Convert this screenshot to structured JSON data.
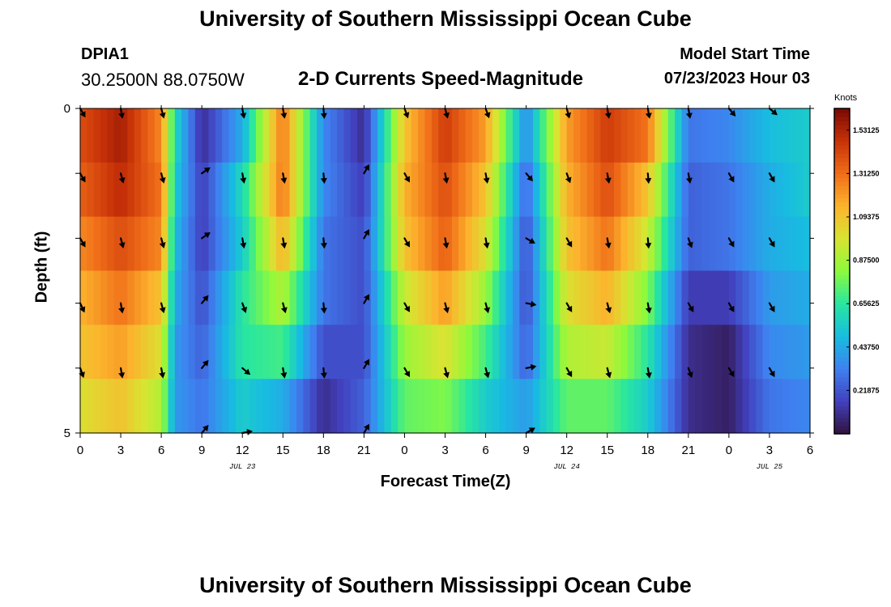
{
  "header": {
    "title": "University of Southern Mississippi Ocean Cube",
    "station": "DPIA1",
    "coords": "30.2500N  88.0750W",
    "subtitle": "2-D Currents Speed-Magnitude",
    "model_start_label": "Model Start Time",
    "model_start_value": "07/23/2023 Hour 03"
  },
  "footer": {
    "title": "University of Southern Mississippi Ocean Cube"
  },
  "chart_data": {
    "type": "heatmap",
    "title": "2-D Currents Speed-Magnitude",
    "xlabel": "Forecast Time(Z)",
    "ylabel": "Depth (ft)",
    "x_ticks": [
      "0",
      "3",
      "6",
      "9",
      "12",
      "15",
      "18",
      "21",
      "0",
      "3",
      "6",
      "9",
      "12",
      "15",
      "18",
      "21",
      "0",
      "3",
      "6"
    ],
    "x_hours_from_jul23_00": [
      0,
      3,
      6,
      9,
      12,
      15,
      18,
      21,
      24,
      27,
      30,
      33,
      36,
      39,
      42,
      45,
      48,
      51,
      54
    ],
    "date_labels": [
      {
        "label": "JUL 23",
        "hour": 12
      },
      {
        "label": "JUL 24",
        "hour": 36
      },
      {
        "label": "JUL 25",
        "hour": 51
      }
    ],
    "y_ticks": [
      "0",
      "5"
    ],
    "ylim": [
      0,
      5
    ],
    "xlim": [
      0,
      54
    ],
    "depth_rows_ft": [
      0,
      1,
      2,
      3,
      4,
      5
    ],
    "colorbar": {
      "unit": "Knots",
      "min": 0.0,
      "max": 1.6406,
      "tick_labels": [
        "1.53125",
        "1.31250",
        "1.09375",
        "0.87500",
        "0.65625",
        "0.43750",
        "0.21875"
      ],
      "tick_values": [
        1.53125,
        1.3125,
        1.09375,
        0.875,
        0.65625,
        0.4375,
        0.21875
      ]
    },
    "speed_keyframes_hours": [
      0,
      3,
      6,
      7,
      9,
      12,
      15,
      18,
      21,
      24,
      27,
      30,
      33,
      36,
      39,
      42,
      45,
      48,
      51,
      54
    ],
    "speed_keyframes_knots": [
      [
        1.4,
        1.55,
        1.25,
        0.6,
        0.1,
        0.45,
        1.3,
        0.35,
        0.1,
        1.1,
        1.45,
        1.2,
        0.35,
        1.2,
        1.45,
        1.3,
        0.3,
        0.35,
        0.5,
        0.55
      ],
      [
        1.35,
        1.5,
        1.3,
        0.55,
        0.15,
        0.6,
        1.3,
        0.35,
        0.15,
        1.15,
        1.4,
        1.1,
        0.25,
        1.15,
        1.4,
        1.1,
        0.25,
        0.3,
        0.45,
        0.55
      ],
      [
        1.25,
        1.4,
        1.25,
        0.5,
        0.15,
        0.55,
        1.15,
        0.3,
        0.2,
        1.1,
        1.35,
        1.0,
        0.2,
        1.1,
        1.3,
        0.95,
        0.25,
        0.3,
        0.45,
        0.5
      ],
      [
        1.15,
        1.3,
        1.1,
        0.45,
        0.2,
        0.65,
        0.9,
        0.3,
        0.2,
        0.95,
        1.2,
        0.85,
        0.2,
        1.0,
        1.15,
        0.8,
        0.15,
        0.15,
        0.4,
        0.45
      ],
      [
        1.1,
        1.2,
        1.0,
        0.4,
        0.25,
        0.65,
        0.7,
        0.2,
        0.2,
        0.85,
        1.0,
        0.7,
        0.25,
        0.9,
        0.95,
        0.65,
        0.1,
        0.05,
        0.35,
        0.4
      ],
      [
        1.0,
        1.1,
        0.9,
        0.4,
        0.3,
        0.55,
        0.45,
        0.1,
        0.25,
        0.75,
        0.8,
        0.55,
        0.4,
        0.75,
        0.75,
        0.55,
        0.1,
        0.05,
        0.3,
        0.35
      ]
    ],
    "vector_times_hours": [
      0,
      3,
      6,
      9,
      12,
      15,
      18,
      21,
      24,
      27,
      30,
      33,
      36,
      39,
      42,
      45,
      48,
      51
    ],
    "vector_directions_deg_from_north": [
      [
        150,
        170,
        165,
        null,
        170,
        170,
        175,
        null,
        160,
        165,
        160,
        null,
        165,
        170,
        170,
        170,
        140,
        130
      ],
      [
        150,
        165,
        165,
        55,
        170,
        170,
        175,
        30,
        150,
        170,
        170,
        140,
        160,
        170,
        175,
        170,
        150,
        150
      ],
      [
        150,
        165,
        165,
        55,
        170,
        170,
        175,
        30,
        150,
        170,
        170,
        120,
        150,
        170,
        175,
        160,
        150,
        150
      ],
      [
        155,
        170,
        165,
        40,
        160,
        165,
        175,
        30,
        150,
        165,
        165,
        100,
        150,
        165,
        170,
        150,
        150,
        150
      ],
      [
        160,
        170,
        170,
        40,
        130,
        170,
        175,
        30,
        150,
        165,
        165,
        80,
        150,
        165,
        170,
        160,
        150,
        150
      ],
      [
        null,
        null,
        null,
        40,
        80,
        null,
        null,
        30,
        null,
        null,
        null,
        60,
        null,
        null,
        null,
        null,
        null,
        null
      ]
    ]
  }
}
